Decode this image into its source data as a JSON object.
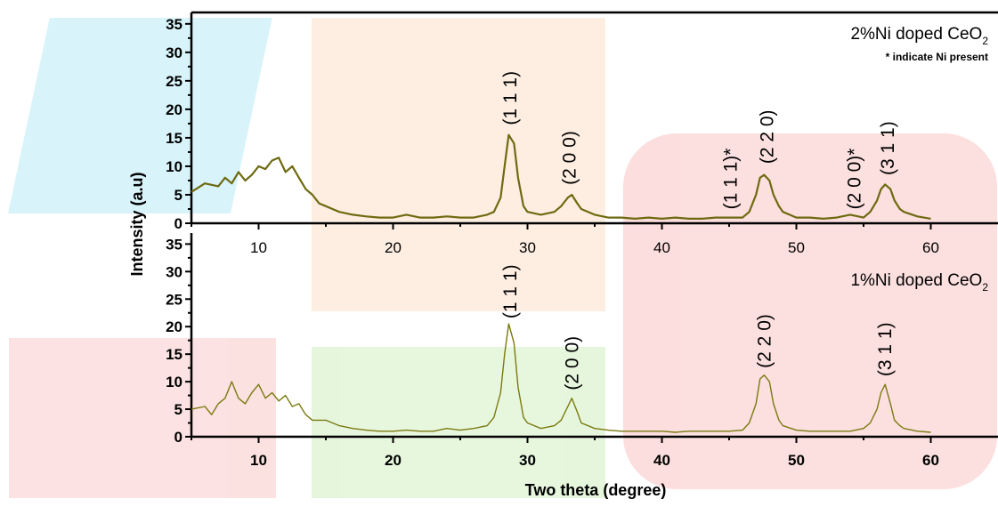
{
  "chart_data": {
    "type": "line",
    "xlabel": "Two theta (degree)",
    "ylabel": "Intensity (a.u)",
    "xlim": [
      5,
      65
    ],
    "x_ticks": [
      "10",
      "20",
      "30",
      "40",
      "50",
      "60"
    ],
    "panels": [
      {
        "id": "top",
        "legend": "2%Ni doped CeO",
        "legend_sub": "2",
        "note": "* indicate Ni present",
        "ylim": [
          0,
          37
        ],
        "y_ticks": [
          "0",
          "5",
          "10",
          "15",
          "20",
          "25",
          "30",
          "35"
        ],
        "series_color": "#6e6a10",
        "series": {
          "x": [
            5,
            6,
            7,
            7.5,
            8,
            8.5,
            9,
            9.5,
            10,
            10.5,
            11,
            11.5,
            12,
            12.5,
            13,
            13.5,
            14,
            14.5,
            15,
            15.5,
            16,
            17,
            18,
            19,
            20,
            21,
            22,
            23,
            24,
            25,
            26,
            27,
            27.5,
            28,
            28.3,
            28.6,
            29,
            29.3,
            29.7,
            30,
            31,
            32,
            32.5,
            33,
            33.3,
            33.7,
            34,
            35,
            36,
            37,
            38,
            39,
            40,
            41,
            42,
            43,
            44,
            45,
            46,
            46.5,
            47,
            47.3,
            47.6,
            48,
            48.3,
            48.7,
            49,
            50,
            51,
            52,
            53,
            54,
            55,
            55.5,
            56,
            56.3,
            56.6,
            57,
            57.3,
            57.7,
            58,
            59,
            60
          ],
          "y": [
            5.5,
            7,
            6.5,
            8,
            7,
            9,
            7.5,
            8.5,
            10,
            9.5,
            11,
            11.5,
            9,
            10,
            8,
            6,
            5,
            3.5,
            3,
            2.5,
            2,
            1.5,
            1.2,
            1,
            1,
            1.5,
            1,
            1,
            1.2,
            1,
            1,
            1.5,
            2,
            4.5,
            10,
            15.5,
            14,
            8,
            3,
            2,
            1.5,
            2,
            3,
            4.5,
            5,
            3.5,
            2.5,
            1.5,
            1,
            1,
            0.8,
            1,
            0.8,
            1,
            0.8,
            0.8,
            1,
            1,
            1,
            2,
            5,
            8,
            8.5,
            7.5,
            5,
            3,
            2,
            1,
            1,
            0.8,
            1,
            1.5,
            1,
            2,
            4,
            6,
            6.8,
            6,
            4,
            2.5,
            2,
            1.2,
            0.8
          ]
        },
        "annotations": [
          {
            "label": "(1 1 1)",
            "x": 28.7,
            "y": 16.3
          },
          {
            "label": "(2 0 0)",
            "x": 33.1,
            "y": 5.8
          },
          {
            "label": "(1 1 1)*",
            "x": 45.1,
            "y": 1.5
          },
          {
            "label": "(2 2 0)",
            "x": 47.8,
            "y": 9.5
          },
          {
            "label": "(2 0 0)*",
            "x": 54.3,
            "y": 1.5
          },
          {
            "label": "(3 1 1)",
            "x": 56.8,
            "y": 7.5
          }
        ]
      },
      {
        "id": "bottom",
        "legend": "1%Ni doped CeO",
        "legend_sub": "2",
        "ylim": [
          0,
          37
        ],
        "y_ticks": [
          "0",
          "5",
          "10",
          "15",
          "20",
          "25",
          "30",
          "35"
        ],
        "series_color": "#7a7a10",
        "series": {
          "x": [
            5,
            6,
            6.5,
            7,
            7.5,
            8,
            8.5,
            9,
            9.5,
            10,
            10.5,
            11,
            11.5,
            12,
            12.5,
            13,
            13.5,
            14,
            15,
            16,
            17,
            18,
            19,
            20,
            21,
            22,
            23,
            24,
            25,
            26,
            27,
            27.5,
            28,
            28.3,
            28.6,
            29,
            29.3,
            29.7,
            30,
            31,
            32,
            32.5,
            33,
            33.3,
            33.7,
            34,
            35,
            36,
            37,
            38,
            39,
            40,
            41,
            42,
            43,
            44,
            45,
            46,
            46.5,
            47,
            47.3,
            47.6,
            48,
            48.3,
            48.7,
            49,
            50,
            51,
            52,
            53,
            54,
            55,
            55.5,
            56,
            56.3,
            56.6,
            57,
            57.3,
            57.7,
            58,
            59,
            60
          ],
          "y": [
            5,
            5.5,
            4,
            6,
            7,
            10,
            7,
            6,
            8,
            9.5,
            7,
            8,
            6.5,
            7.5,
            5.5,
            6,
            4,
            3,
            3,
            2,
            1.5,
            1.2,
            1,
            1,
            1.2,
            1,
            1,
            1.5,
            1.2,
            1.5,
            2,
            3.5,
            8,
            15,
            20.5,
            17,
            9,
            3.5,
            2.5,
            1.5,
            2,
            3,
            5.5,
            7,
            4.5,
            2.5,
            1.5,
            1.2,
            1,
            1,
            1,
            1,
            0.8,
            1,
            1,
            1,
            1,
            1.2,
            2.5,
            6,
            10.5,
            11.2,
            10,
            6,
            3,
            2,
            1.2,
            1,
            1,
            1,
            1,
            1.5,
            2.5,
            5,
            8,
            9.5,
            6,
            3,
            2,
            1.5,
            1,
            0.8
          ]
        },
        "annotations": [
          {
            "label": "(1 1 1)",
            "x": 28.7,
            "y": 20.5
          },
          {
            "label": "(2 0 0)",
            "x": 33.3,
            "y": 7.5
          },
          {
            "label": "(2 2 0)",
            "x": 47.6,
            "y": 11.5
          },
          {
            "label": "(3 1 1)",
            "x": 56.6,
            "y": 10
          }
        ]
      }
    ]
  }
}
